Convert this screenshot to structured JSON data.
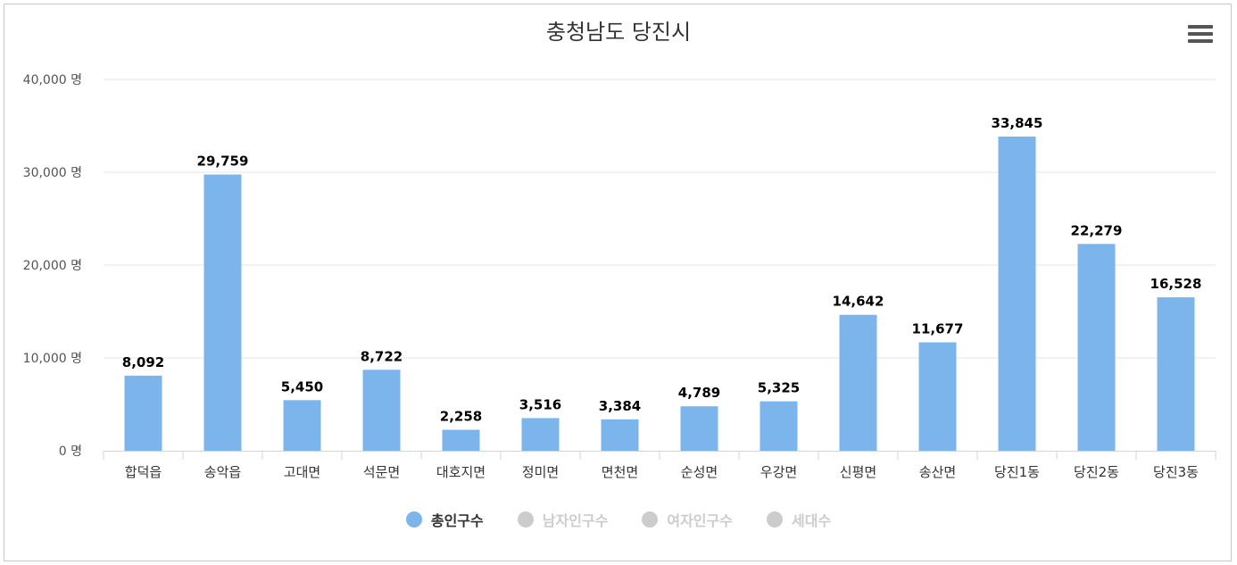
{
  "chart_data": {
    "type": "bar",
    "title": "충청남도 당진시",
    "categories": [
      "합덕읍",
      "송악읍",
      "고대면",
      "석문면",
      "대호지면",
      "정미면",
      "면천면",
      "순성면",
      "우강면",
      "신평면",
      "송산면",
      "당진1동",
      "당진2동",
      "당진3동"
    ],
    "series": [
      {
        "name": "총인구수",
        "values": [
          8092,
          29759,
          5450,
          8722,
          2258,
          3516,
          3384,
          4789,
          5325,
          14642,
          11677,
          33845,
          22279,
          16528
        ],
        "color": "#7cb5ec",
        "visible": true
      }
    ],
    "value_labels": [
      "8,092",
      "29,759",
      "5,450",
      "8,722",
      "2,258",
      "3,516",
      "3,384",
      "4,789",
      "5,325",
      "14,642",
      "11,677",
      "33,845",
      "22,279",
      "16,528"
    ],
    "yticks": [
      0,
      10000,
      20000,
      30000,
      40000
    ],
    "ytick_labels": [
      "0 명",
      "10,000 명",
      "20,000 명",
      "30,000 명",
      "40,000 명"
    ],
    "ylim": [
      0,
      40000
    ],
    "grid": true,
    "legend_position": "bottom-center"
  },
  "legend": {
    "items": [
      {
        "label": "총인구수",
        "color": "#7cb5ec",
        "active": true
      },
      {
        "label": "남자인구수",
        "color": "#cccccc",
        "active": false
      },
      {
        "label": "여자인구수",
        "color": "#cccccc",
        "active": false
      },
      {
        "label": "세대수",
        "color": "#cccccc",
        "active": false
      }
    ]
  },
  "menu_icon": "hamburger-menu-icon"
}
